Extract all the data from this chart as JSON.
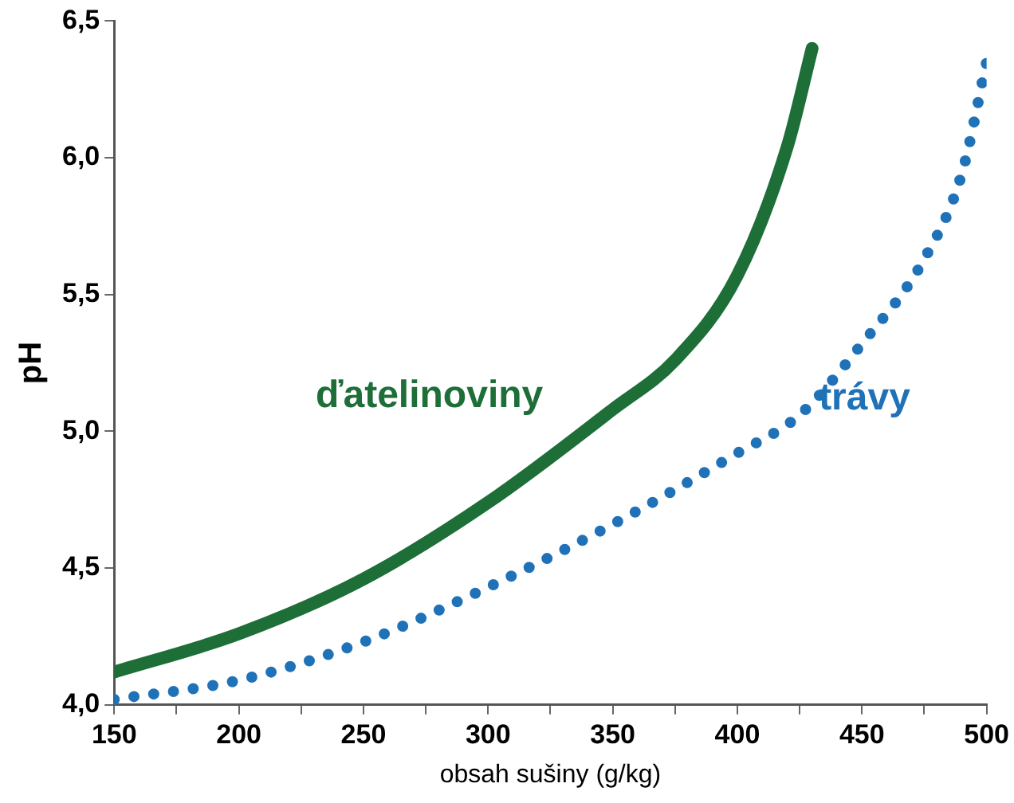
{
  "chart_data": {
    "type": "line",
    "xlabel": "obsah sušiny (g/kg)",
    "ylabel": "pH",
    "xlim": [
      150,
      500
    ],
    "ylim": [
      4.0,
      6.5
    ],
    "xticks": [
      150,
      {
        "value": 175,
        "label": null
      },
      200,
      {
        "value": 225,
        "label": null
      },
      250,
      {
        "value": 275,
        "label": null
      },
      300,
      {
        "value": 325,
        "label": null
      },
      350,
      {
        "value": 375,
        "label": null
      },
      400,
      {
        "value": 425,
        "label": null
      },
      450,
      {
        "value": 475,
        "label": null
      },
      500
    ],
    "yticks": [
      {
        "value": 4.0,
        "label": "4,0"
      },
      {
        "value": 4.5,
        "label": "4,5"
      },
      {
        "value": 5.0,
        "label": "5,0"
      },
      {
        "value": 5.5,
        "label": "5,5"
      },
      {
        "value": 6.0,
        "label": "6,0"
      },
      {
        "value": 6.5,
        "label": "6,5"
      }
    ],
    "grid": false,
    "legend": false,
    "marker": "none",
    "series": [
      {
        "name": "ďatelinoviny",
        "color": "#1e6e38",
        "line_style": "solid",
        "x": [
          150,
          200,
          250,
          300,
          350,
          375,
          400,
          420,
          430
        ],
        "values": [
          4.12,
          4.26,
          4.46,
          4.74,
          5.08,
          5.26,
          5.57,
          6.04,
          6.4
        ]
      },
      {
        "name": "trávy",
        "color": "#1f72b8",
        "line_style": "dotted",
        "x": [
          150,
          200,
          250,
          300,
          350,
          400,
          425,
          450,
          475,
          490,
          500
        ],
        "values": [
          4.02,
          4.09,
          4.23,
          4.43,
          4.66,
          4.92,
          5.06,
          5.32,
          5.63,
          5.94,
          6.35
        ]
      }
    ]
  }
}
